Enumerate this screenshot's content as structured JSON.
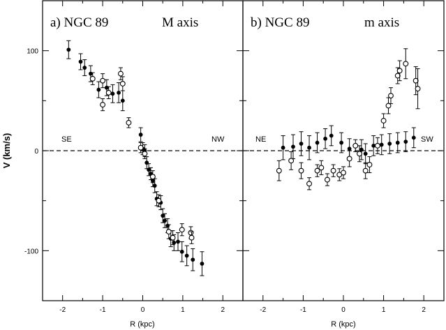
{
  "ylabel": "V (km/s)",
  "chart_data": [
    {
      "type": "scatter",
      "title": "a) NGC 89",
      "axis_name": "M axis",
      "xlabel": "R (kpc)",
      "xlim": [
        -2.5,
        2.5
      ],
      "ylim": [
        -150,
        150
      ],
      "xticks": [
        -2,
        -1,
        0,
        1,
        2
      ],
      "yticks": [
        -100,
        0,
        100
      ],
      "left_label": "SE",
      "right_label": "NW",
      "grid": false,
      "series": [
        {
          "marker": "filled",
          "points": [
            [
              -1.85,
              101,
              9
            ],
            [
              -1.55,
              89,
              8
            ],
            [
              -1.45,
              83,
              8
            ],
            [
              -1.3,
              77,
              8
            ],
            [
              -1.1,
              61,
              8
            ],
            [
              -0.9,
              63,
              8
            ],
            [
              -0.75,
              57,
              9
            ],
            [
              -0.6,
              58,
              10
            ],
            [
              -0.5,
              50,
              10
            ],
            [
              -0.05,
              16,
              7
            ],
            [
              0.0,
              2,
              6
            ],
            [
              0.05,
              0,
              6
            ],
            [
              0.1,
              -12,
              6
            ],
            [
              0.15,
              -19,
              6
            ],
            [
              0.2,
              -23,
              6
            ],
            [
              0.25,
              -30,
              6
            ],
            [
              0.3,
              -35,
              7
            ],
            [
              0.35,
              -48,
              7
            ],
            [
              0.45,
              -52,
              7
            ],
            [
              0.5,
              -65,
              7
            ],
            [
              0.55,
              -70,
              7
            ],
            [
              0.62,
              -75,
              7
            ],
            [
              0.7,
              -88,
              8
            ],
            [
              0.78,
              -92,
              8
            ],
            [
              0.88,
              -91,
              9
            ],
            [
              0.98,
              -101,
              10
            ],
            [
              1.1,
              -105,
              10
            ],
            [
              1.25,
              -109,
              11
            ],
            [
              1.48,
              -113,
              12
            ]
          ]
        },
        {
          "marker": "open",
          "points": [
            [
              -1.25,
              72,
              6
            ],
            [
              -1.0,
              70,
              7
            ],
            [
              -1.0,
              46,
              6
            ],
            [
              -0.85,
              58,
              6
            ],
            [
              -0.55,
              77,
              6
            ],
            [
              -0.5,
              67,
              7
            ],
            [
              -0.35,
              28,
              5
            ],
            [
              -0.05,
              3,
              5
            ],
            [
              0.05,
              -3,
              5
            ],
            [
              0.25,
              -26,
              6
            ],
            [
              0.4,
              -50,
              6
            ],
            [
              0.65,
              -81,
              7
            ],
            [
              0.75,
              -87,
              7
            ],
            [
              0.98,
              -79,
              6
            ],
            [
              1.2,
              -82,
              6
            ],
            [
              1.22,
              -87,
              6
            ]
          ]
        }
      ]
    },
    {
      "type": "scatter",
      "title": "b) NGC 89",
      "axis_name": "m axis",
      "xlabel": "R (kpc)",
      "xlim": [
        -2.5,
        2.5
      ],
      "ylim": [
        -150,
        150
      ],
      "xticks": [
        -2,
        -1,
        0,
        1,
        2
      ],
      "yticks": [
        -100,
        0,
        100
      ],
      "left_label": "NE",
      "right_label": "SW",
      "grid": false,
      "series": [
        {
          "marker": "filled",
          "points": [
            [
              -1.5,
              3,
              12
            ],
            [
              -1.25,
              4,
              12
            ],
            [
              -1.05,
              7,
              12
            ],
            [
              -0.85,
              3,
              12
            ],
            [
              -0.65,
              8,
              10
            ],
            [
              -0.45,
              12,
              10
            ],
            [
              -0.3,
              15,
              10
            ],
            [
              -0.05,
              8,
              10
            ],
            [
              0.15,
              2,
              10
            ],
            [
              0.45,
              1,
              10
            ],
            [
              0.55,
              -3,
              10
            ],
            [
              0.75,
              5,
              10
            ],
            [
              0.95,
              6,
              10
            ],
            [
              1.15,
              7,
              10
            ],
            [
              1.35,
              8,
              10
            ],
            [
              1.55,
              9,
              10
            ],
            [
              1.75,
              13,
              10
            ]
          ]
        },
        {
          "marker": "open",
          "points": [
            [
              -1.6,
              -20,
              10
            ],
            [
              -1.3,
              -10,
              9
            ],
            [
              -1.05,
              -20,
              8
            ],
            [
              -0.85,
              -33,
              6
            ],
            [
              -0.65,
              -20,
              6
            ],
            [
              -0.55,
              -17,
              7
            ],
            [
              -0.4,
              -29,
              6
            ],
            [
              -0.25,
              -20,
              6
            ],
            [
              -0.1,
              -24,
              6
            ],
            [
              0.0,
              -22,
              6
            ],
            [
              0.15,
              -8,
              8
            ],
            [
              0.3,
              5,
              6
            ],
            [
              0.4,
              -3,
              8
            ],
            [
              0.55,
              -20,
              8
            ],
            [
              0.65,
              -14,
              8
            ],
            [
              0.85,
              5,
              8
            ],
            [
              1.0,
              30,
              7
            ],
            [
              1.12,
              45,
              8
            ],
            [
              1.18,
              55,
              8
            ],
            [
              1.35,
              75,
              8
            ],
            [
              1.4,
              80,
              10
            ],
            [
              1.55,
              87,
              15
            ],
            [
              1.8,
              70,
              14
            ],
            [
              1.85,
              62,
              20
            ]
          ]
        }
      ]
    }
  ]
}
